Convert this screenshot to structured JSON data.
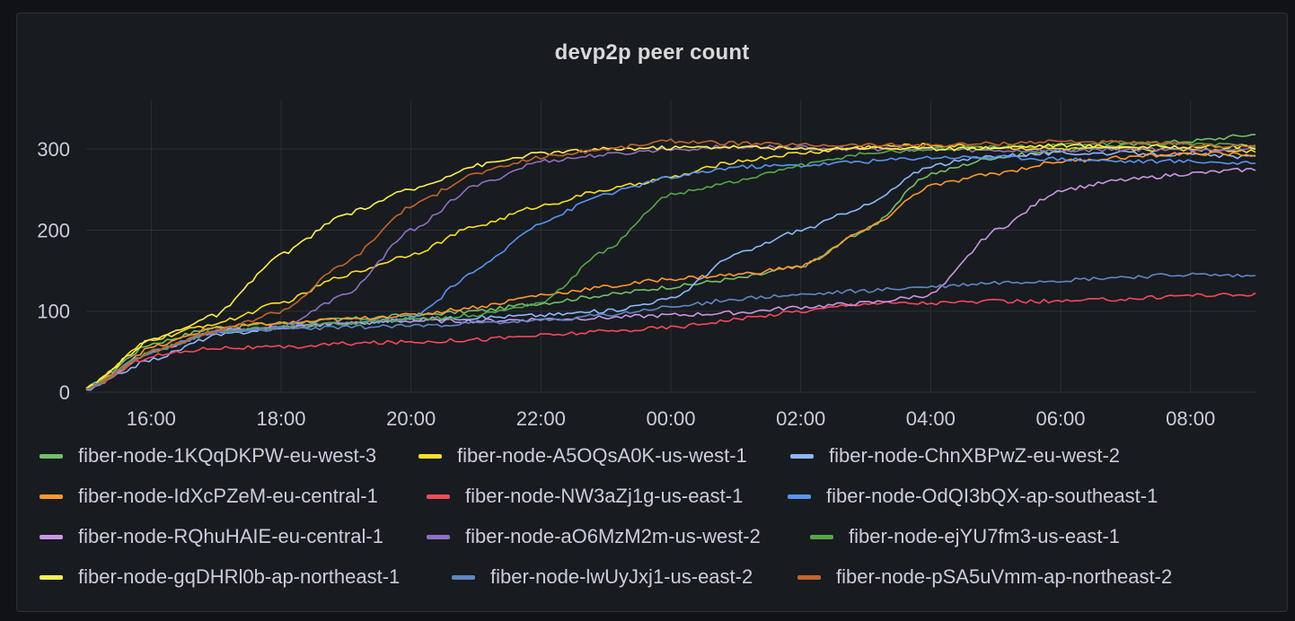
{
  "panel": {
    "title": "devp2p peer count"
  },
  "colors": {
    "background": "#181b1f",
    "grid": "#2c3037",
    "text": "#ccccdc"
  },
  "chart_data": {
    "type": "line",
    "title": "devp2p peer count",
    "xlabel": "",
    "ylabel": "",
    "x_ticks": [
      "16:00",
      "18:00",
      "20:00",
      "22:00",
      "00:00",
      "02:00",
      "04:00",
      "06:00",
      "08:00"
    ],
    "y_ticks": [
      0,
      100,
      200,
      300
    ],
    "xlim": [
      "15:00",
      "09:00"
    ],
    "ylim": [
      0,
      360
    ],
    "grid": true,
    "legend": "bottom",
    "x": [
      "15:00",
      "16:00",
      "17:00",
      "18:00",
      "19:00",
      "20:00",
      "21:00",
      "22:00",
      "23:00",
      "00:00",
      "01:00",
      "02:00",
      "03:00",
      "04:00",
      "05:00",
      "06:00",
      "07:00",
      "08:00",
      "09:00"
    ],
    "series": [
      {
        "name": "fiber-node-1KQqDKPW-eu-west-3",
        "color": "#73bf69",
        "values": [
          5,
          60,
          80,
          85,
          90,
          95,
          100,
          110,
          120,
          130,
          140,
          155,
          200,
          270,
          290,
          298,
          305,
          310,
          318
        ]
      },
      {
        "name": "fiber-node-A5OQsA0K-us-west-1",
        "color": "#fade2a",
        "values": [
          5,
          65,
          85,
          110,
          145,
          170,
          205,
          230,
          250,
          265,
          285,
          295,
          303,
          305,
          302,
          300,
          300,
          300,
          298
        ]
      },
      {
        "name": "fiber-node-ChnXBPwZ-eu-west-2",
        "color": "#8ab8ff",
        "values": [
          3,
          40,
          70,
          80,
          85,
          90,
          92,
          95,
          100,
          115,
          170,
          200,
          230,
          280,
          292,
          295,
          295,
          293,
          290
        ]
      },
      {
        "name": "fiber-node-IdXcPZeM-eu-central-1",
        "color": "#ff9830",
        "values": [
          3,
          55,
          80,
          85,
          90,
          95,
          105,
          120,
          130,
          140,
          145,
          155,
          200,
          255,
          270,
          285,
          290,
          295,
          293
        ]
      },
      {
        "name": "fiber-node-NW3aZj1g-us-east-1",
        "color": "#f2495c",
        "values": [
          3,
          45,
          55,
          55,
          60,
          62,
          65,
          70,
          75,
          80,
          90,
          100,
          110,
          110,
          112,
          112,
          115,
          120,
          120
        ]
      },
      {
        "name": "fiber-node-OdQI3bQX-ap-southeast-1",
        "color": "#5794f2",
        "values": [
          3,
          50,
          75,
          80,
          85,
          90,
          150,
          210,
          245,
          265,
          278,
          280,
          285,
          290,
          290,
          288,
          285,
          285,
          282
        ]
      },
      {
        "name": "fiber-node-RQhuHAIE-eu-central-1",
        "color": "#ca95e5",
        "values": [
          3,
          50,
          75,
          80,
          85,
          88,
          88,
          90,
          92,
          95,
          98,
          105,
          110,
          120,
          200,
          250,
          262,
          270,
          275
        ]
      },
      {
        "name": "fiber-node-aO6MzM2m-us-west-2",
        "color": "#8f6fc1",
        "values": [
          4,
          50,
          75,
          80,
          120,
          200,
          255,
          285,
          293,
          300,
          303,
          302,
          300,
          300,
          298,
          298,
          300,
          300,
          300
        ]
      },
      {
        "name": "fiber-node-ejYU7fm3-us-east-1",
        "color": "#56a64b",
        "values": [
          4,
          50,
          75,
          80,
          85,
          90,
          95,
          110,
          175,
          245,
          260,
          280,
          295,
          300,
          302,
          305,
          308,
          306,
          305
        ]
      },
      {
        "name": "fiber-node-gqDHRl0b-ap-northeast-1",
        "color": "#ffee52",
        "values": [
          4,
          65,
          95,
          170,
          220,
          250,
          280,
          295,
          300,
          302,
          303,
          300,
          302,
          300,
          302,
          305,
          303,
          303,
          302
        ]
      },
      {
        "name": "fiber-node-lwUyJxj1-us-east-2",
        "color": "#5f86c5",
        "values": [
          4,
          50,
          75,
          78,
          80,
          82,
          85,
          88,
          95,
          105,
          115,
          120,
          125,
          130,
          135,
          138,
          142,
          145,
          143
        ]
      },
      {
        "name": "fiber-node-pSA5uVmm-ap-northeast-2",
        "color": "#c0652b",
        "values": [
          4,
          50,
          75,
          100,
          160,
          230,
          270,
          290,
          300,
          310,
          307,
          305,
          305,
          305,
          307,
          310,
          308,
          305,
          303
        ]
      }
    ]
  }
}
